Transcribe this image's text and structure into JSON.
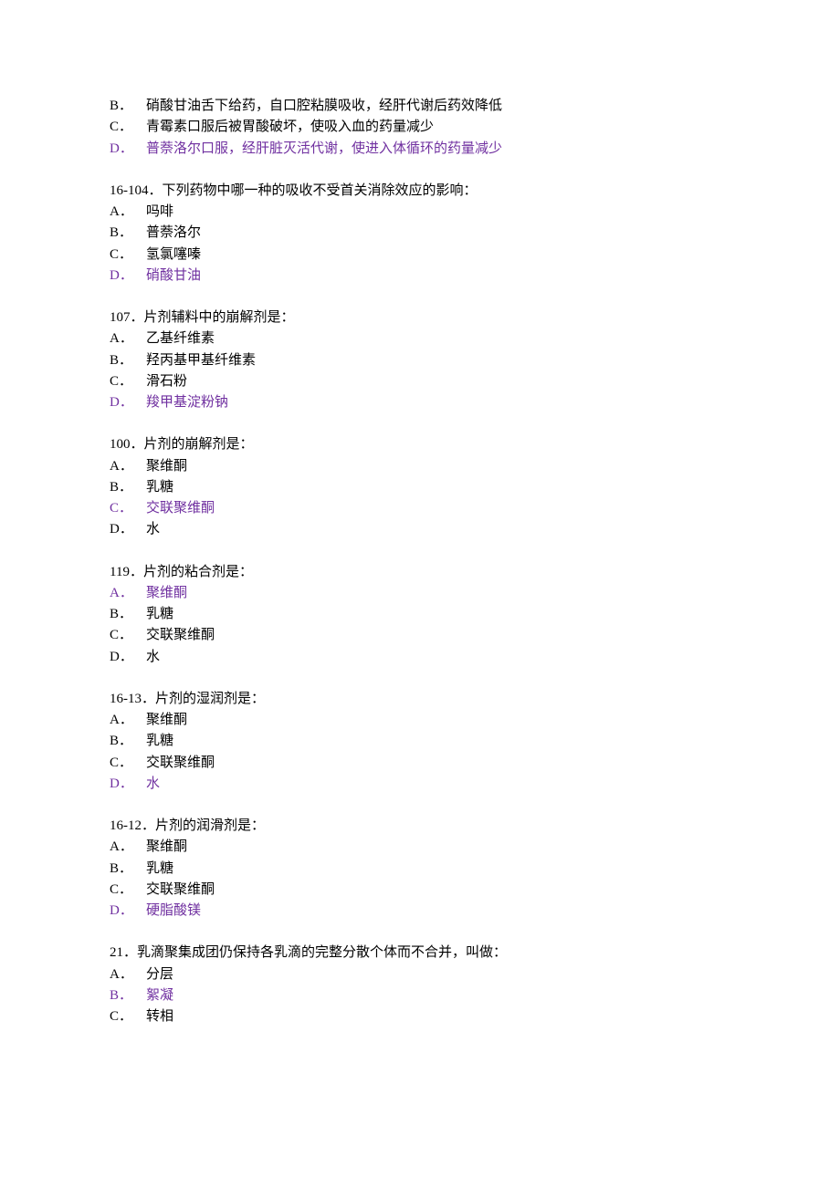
{
  "colors": {
    "text_default": "#000000",
    "text_highlight": "#7030a0",
    "background": "#ffffff"
  },
  "typography": {
    "font_family": "SimSun",
    "font_size": 15,
    "line_height": 1.55
  },
  "lead_options": [
    {
      "label": "B．",
      "text": "硝酸甘油舌下给药，自口腔粘膜吸收，经肝代谢后药效降低",
      "highlight": false
    },
    {
      "label": "C．",
      "text": "青霉素口服后被胃酸破坏，使吸入血的药量减少",
      "highlight": false
    },
    {
      "label": "D．",
      "text": "普萘洛尔口服，经肝脏灭活代谢，使进入体循环的药量减少",
      "highlight": true
    }
  ],
  "questions": [
    {
      "number": "16-104．",
      "stem": "下列药物中哪一种的吸收不受首关消除效应的影响：",
      "options": [
        {
          "label": "A．",
          "text": "吗啡",
          "highlight": false
        },
        {
          "label": "B．",
          "text": "普萘洛尔",
          "highlight": false
        },
        {
          "label": "C．",
          "text": "氢氯噻嗪",
          "highlight": false
        },
        {
          "label": "D．",
          "text": "硝酸甘油",
          "highlight": true
        }
      ]
    },
    {
      "number": "107．",
      "stem": "片剂辅料中的崩解剂是：",
      "options": [
        {
          "label": "A．",
          "text": "乙基纤维素",
          "highlight": false
        },
        {
          "label": "B．",
          "text": "羟丙基甲基纤维素",
          "highlight": false
        },
        {
          "label": "C．",
          "text": "滑石粉",
          "highlight": false
        },
        {
          "label": "D．",
          "text": "羧甲基淀粉钠",
          "highlight": true
        }
      ]
    },
    {
      "number": "100．",
      "stem": "片剂的崩解剂是：",
      "options": [
        {
          "label": "A．",
          "text": "聚维酮",
          "highlight": false
        },
        {
          "label": "B．",
          "text": "乳糖",
          "highlight": false
        },
        {
          "label": "C．",
          "text": "交联聚维酮",
          "highlight": true
        },
        {
          "label": "D．",
          "text": "水",
          "highlight": false
        }
      ]
    },
    {
      "number": "119．",
      "stem": "片剂的粘合剂是：",
      "options": [
        {
          "label": "A．",
          "text": "聚维酮",
          "highlight": true
        },
        {
          "label": "B．",
          "text": "乳糖",
          "highlight": false
        },
        {
          "label": "C．",
          "text": "交联聚维酮",
          "highlight": false
        },
        {
          "label": "D．",
          "text": "水",
          "highlight": false
        }
      ]
    },
    {
      "number": "16-13．",
      "stem": "片剂的湿润剂是：",
      "options": [
        {
          "label": "A．",
          "text": "聚维酮",
          "highlight": false
        },
        {
          "label": "B．",
          "text": "乳糖",
          "highlight": false
        },
        {
          "label": "C．",
          "text": "交联聚维酮",
          "highlight": false
        },
        {
          "label": "D．",
          "text": "水",
          "highlight": true
        }
      ]
    },
    {
      "number": "16-12．",
      "stem": "片剂的润滑剂是：",
      "options": [
        {
          "label": "A．",
          "text": "聚维酮",
          "highlight": false
        },
        {
          "label": "B．",
          "text": "乳糖",
          "highlight": false
        },
        {
          "label": "C．",
          "text": "交联聚维酮",
          "highlight": false
        },
        {
          "label": "D．",
          "text": "硬脂酸镁",
          "highlight": true
        }
      ]
    },
    {
      "number": "21．",
      "stem": "乳滴聚集成团仍保持各乳滴的完整分散个体而不合并，叫做：",
      "options": [
        {
          "label": "A．",
          "text": "分层",
          "highlight": false
        },
        {
          "label": "B．",
          "text": "絮凝",
          "highlight": true
        },
        {
          "label": "C．",
          "text": "转相",
          "highlight": false
        }
      ]
    }
  ]
}
